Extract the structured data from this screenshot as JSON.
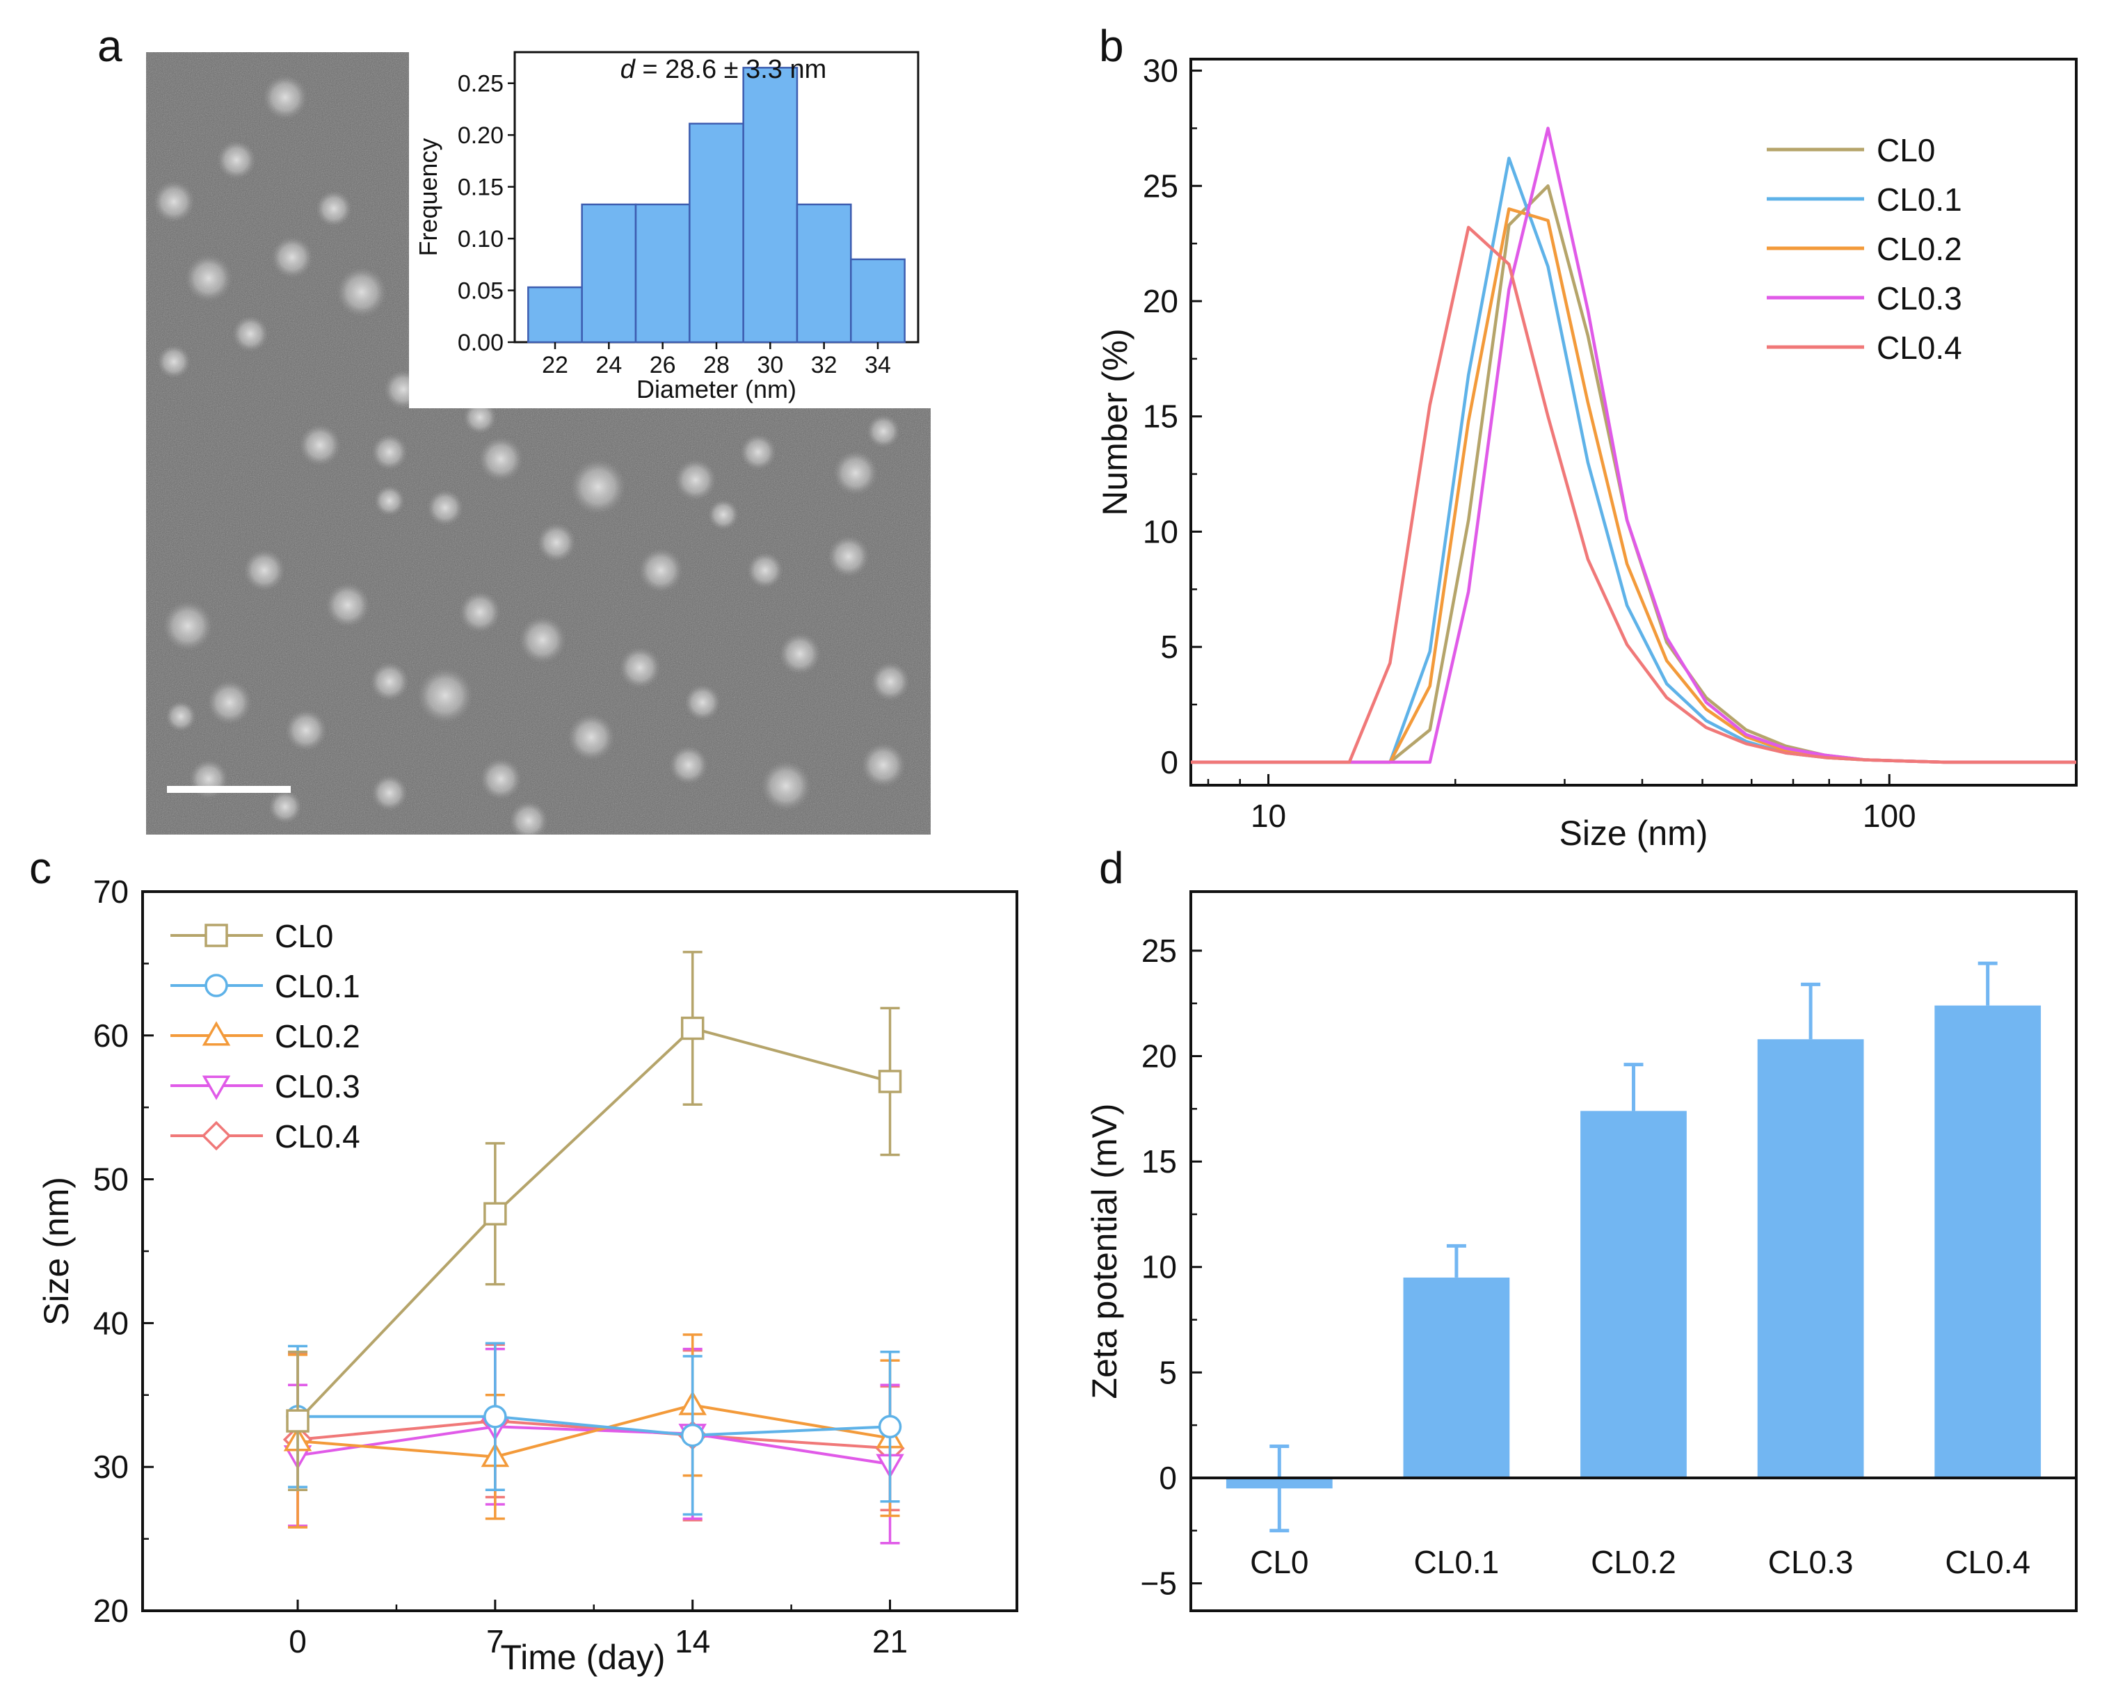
{
  "figure": {
    "panel_labels": [
      "a",
      "b",
      "c",
      "d"
    ],
    "colors": {
      "CL0": "#b5a46a",
      "CL0.1": "#5eb2e8",
      "CL0.2": "#f39a3a",
      "CL0.3": "#e05ae8",
      "CL0.4": "#f07878",
      "bar": "#72b6f2",
      "bar_edge": "#3d5db0",
      "axis": "#111111"
    }
  },
  "chart_data": [
    {
      "panel": "a",
      "type": "image",
      "content": "TEM micrograph of nanoparticles with scale bar",
      "inset": {
        "type": "bar",
        "annotation_var": "d",
        "annotation_rest": " = 28.6 ± 3.3 nm",
        "xlabel": "Diameter (nm)",
        "ylabel": "Frequency",
        "bin_edges": [
          21,
          23,
          25,
          27,
          29,
          31,
          33,
          35
        ],
        "values": [
          0.053,
          0.133,
          0.133,
          0.211,
          0.265,
          0.133,
          0.08
        ],
        "xlim": [
          20.5,
          35.5
        ],
        "ylim": [
          0,
          0.28
        ],
        "xticks": [
          "22",
          "24",
          "26",
          "28",
          "30",
          "32",
          "34"
        ],
        "xtick_values": [
          22,
          24,
          26,
          28,
          30,
          32,
          34
        ],
        "yticks": [
          "0.00",
          "0.05",
          "0.10",
          "0.15",
          "0.20",
          "0.25"
        ],
        "ytick_values": [
          0,
          0.05,
          0.1,
          0.15,
          0.2,
          0.25
        ]
      }
    },
    {
      "panel": "b",
      "type": "line",
      "xscale": "log",
      "xlabel": "Size (nm)",
      "ylabel": "Number (%)",
      "xlim": [
        7.5,
        200
      ],
      "ylim": [
        -1,
        30.5
      ],
      "xticks": [
        "10",
        "100"
      ],
      "xtick_values": [
        10,
        100
      ],
      "yticks": [
        "0",
        "5",
        "10",
        "15",
        "20",
        "25",
        "30"
      ],
      "ytick_values": [
        0,
        5,
        10,
        15,
        20,
        25,
        30
      ],
      "legend_position": "top-right",
      "series": [
        {
          "name": "CL0",
          "x": [
            7.5,
            15.7,
            18.2,
            21.0,
            24.4,
            28.2,
            32.7,
            37.8,
            43.8,
            50.7,
            58.8,
            68.1,
            78.8,
            91.3,
            105.7,
            122.4,
            141.8,
            164.2,
            200
          ],
          "y": [
            0,
            0,
            1.4,
            10.5,
            23.3,
            25.0,
            18.5,
            10.5,
            5.2,
            2.8,
            1.4,
            0.7,
            0.3,
            0.1,
            0.05,
            0,
            0,
            0,
            0
          ]
        },
        {
          "name": "CL0.1",
          "x": [
            7.5,
            15.7,
            18.2,
            21.0,
            24.4,
            28.2,
            32.7,
            37.8,
            43.8,
            50.7,
            58.8,
            68.1,
            78.8,
            91.3,
            105.7,
            122.4,
            141.8,
            164.2,
            200
          ],
          "y": [
            0,
            0,
            4.8,
            16.8,
            26.2,
            21.5,
            13.0,
            6.8,
            3.4,
            1.8,
            0.9,
            0.4,
            0.2,
            0.1,
            0.05,
            0,
            0,
            0,
            0
          ]
        },
        {
          "name": "CL0.2",
          "x": [
            7.5,
            15.7,
            18.2,
            21.0,
            24.4,
            28.2,
            32.7,
            37.8,
            43.8,
            50.7,
            58.8,
            68.1,
            78.8,
            91.3,
            105.7,
            122.4,
            141.8,
            164.2,
            200
          ],
          "y": [
            0,
            0,
            3.3,
            14.8,
            24.0,
            23.5,
            15.6,
            8.6,
            4.4,
            2.3,
            1.1,
            0.5,
            0.2,
            0.1,
            0.05,
            0,
            0,
            0,
            0
          ]
        },
        {
          "name": "CL0.3",
          "x": [
            7.5,
            18.2,
            21.0,
            24.4,
            28.2,
            32.7,
            37.8,
            43.8,
            50.7,
            58.8,
            68.1,
            78.8,
            91.3,
            105.7,
            122.4,
            141.8,
            164.2,
            200
          ],
          "y": [
            0,
            0,
            7.4,
            20.5,
            27.5,
            19.6,
            10.5,
            5.4,
            2.6,
            1.2,
            0.6,
            0.3,
            0.1,
            0.05,
            0,
            0,
            0,
            0
          ]
        },
        {
          "name": "CL0.4",
          "x": [
            7.5,
            13.5,
            15.7,
            18.2,
            21.0,
            24.4,
            28.2,
            32.7,
            37.8,
            43.8,
            50.7,
            58.8,
            68.1,
            78.8,
            91.3,
            105.7,
            122.4,
            141.8,
            164.2,
            200
          ],
          "y": [
            0,
            0,
            4.3,
            15.5,
            23.2,
            21.6,
            15.0,
            8.8,
            5.1,
            2.8,
            1.5,
            0.8,
            0.4,
            0.2,
            0.1,
            0.05,
            0,
            0,
            0,
            0
          ]
        }
      ]
    },
    {
      "panel": "c",
      "type": "line",
      "markers": true,
      "error_bars": true,
      "xlabel": "Time (day)",
      "ylabel": "Size (nm)",
      "xlim": [
        -5.5,
        25.5
      ],
      "ylim": [
        20,
        70
      ],
      "xticks": [
        "0",
        "7",
        "14",
        "21"
      ],
      "xtick_values": [
        0,
        7,
        14,
        21
      ],
      "yticks": [
        "20",
        "30",
        "40",
        "50",
        "60",
        "70"
      ],
      "ytick_values": [
        20,
        30,
        40,
        50,
        60,
        70
      ],
      "legend_position": "top-left",
      "series": [
        {
          "name": "CL0",
          "marker": "square",
          "x": [
            0,
            7,
            14,
            21
          ],
          "y": [
            33.2,
            47.6,
            60.5,
            56.8
          ],
          "err": [
            4.8,
            4.9,
            5.3,
            5.1
          ]
        },
        {
          "name": "CL0.1",
          "marker": "circle",
          "x": [
            0,
            7,
            14,
            21
          ],
          "y": [
            33.5,
            33.5,
            32.2,
            32.8
          ],
          "err": [
            4.9,
            5.1,
            5.5,
            5.2
          ]
        },
        {
          "name": "CL0.2",
          "marker": "triangle-up",
          "x": [
            0,
            7,
            14,
            21
          ],
          "y": [
            31.8,
            30.7,
            34.3,
            32.0
          ],
          "err": [
            6.0,
            4.3,
            4.9,
            5.4
          ]
        },
        {
          "name": "CL0.3",
          "marker": "triangle-down",
          "x": [
            0,
            7,
            14,
            21
          ],
          "y": [
            30.8,
            32.8,
            32.3,
            30.2
          ],
          "err": [
            4.9,
            5.4,
            5.9,
            5.5
          ]
        },
        {
          "name": "CL0.4",
          "marker": "diamond",
          "x": [
            0,
            7,
            14,
            21
          ],
          "y": [
            31.9,
            33.2,
            32.2,
            31.3
          ],
          "err": [
            6.0,
            5.3,
            5.9,
            4.3
          ]
        }
      ]
    },
    {
      "panel": "d",
      "type": "bar",
      "error_bars": true,
      "xlabel": "",
      "ylabel": "Zeta potential (mV)",
      "categories": [
        "CL0",
        "CL0.1",
        "CL0.2",
        "CL0.3",
        "CL0.4"
      ],
      "values": [
        -0.5,
        9.5,
        17.4,
        20.8,
        22.4
      ],
      "err": [
        2.0,
        1.5,
        2.2,
        2.6,
        2.0
      ],
      "ylim": [
        -6.3,
        27.8
      ],
      "yticks": [
        "−5",
        "0",
        "5",
        "10",
        "15",
        "20",
        "25"
      ],
      "ytick_values": [
        -5,
        0,
        5,
        10,
        15,
        20,
        25
      ]
    }
  ]
}
